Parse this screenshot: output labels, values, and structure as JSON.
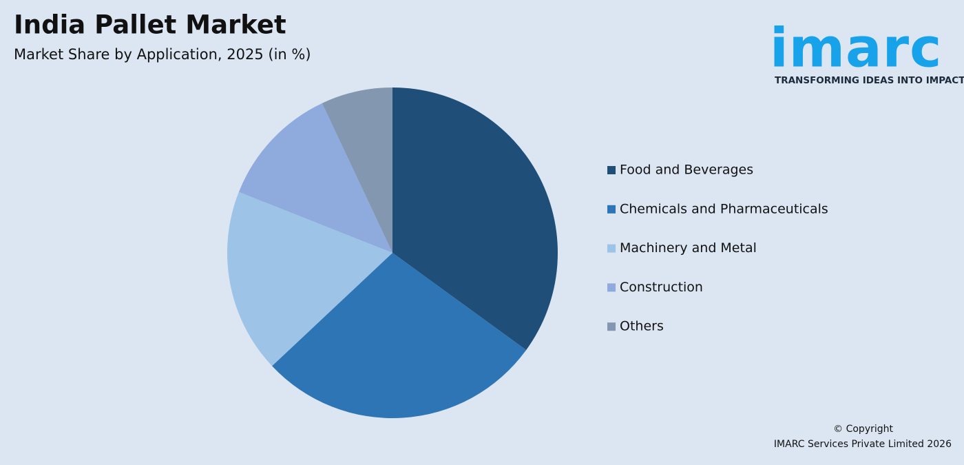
{
  "chart_data": {
    "type": "pie",
    "title": "India Pallet Market",
    "subtitle": "Market Share by Application, 2025 (in %)",
    "categories": [
      "Food and Beverages",
      "Chemicals and Pharmaceuticals",
      "Machinery and Metal",
      "Construction",
      "Others"
    ],
    "values": [
      35,
      28,
      18,
      12,
      7
    ],
    "colors": [
      "#1f4e79",
      "#2e75b6",
      "#9dc3e6",
      "#8faadc",
      "#8497b0"
    ],
    "legend": "right"
  },
  "logo": {
    "name": "imarc",
    "tagline": "TRANSFORMING IDEAS INTO IMPACT"
  },
  "footer": {
    "copyright": "© Copyright",
    "owner": "IMARC Services Private Limited 2026"
  }
}
